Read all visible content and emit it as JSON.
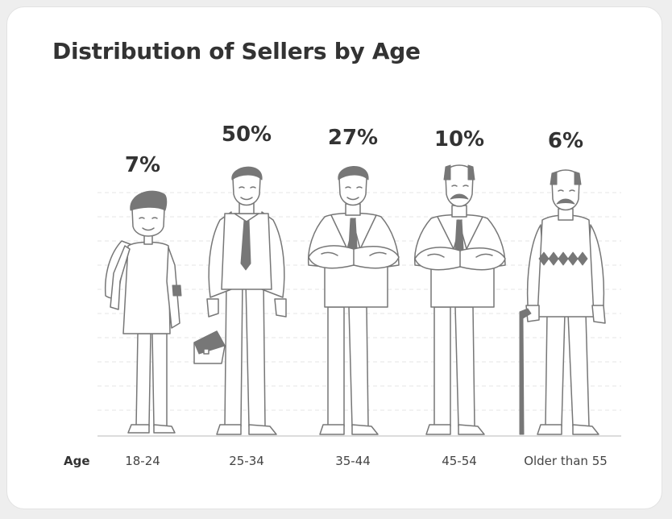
{
  "chart_data": {
    "type": "bar",
    "title": "Distribution of Sellers by Age",
    "xlabel": "Age",
    "categories": [
      "18-24",
      "25-34",
      "35-44",
      "45-54",
      "Older than 55"
    ],
    "values": [
      7,
      50,
      27,
      10,
      6
    ],
    "value_labels": [
      "7%",
      "50%",
      "27%",
      "10%",
      "6%"
    ],
    "unit": "%",
    "grid": true,
    "colors": {
      "text": "#333333",
      "figure_stroke": "#777777",
      "accent_fill": "#777777",
      "grid": "#e6e6e6"
    }
  }
}
